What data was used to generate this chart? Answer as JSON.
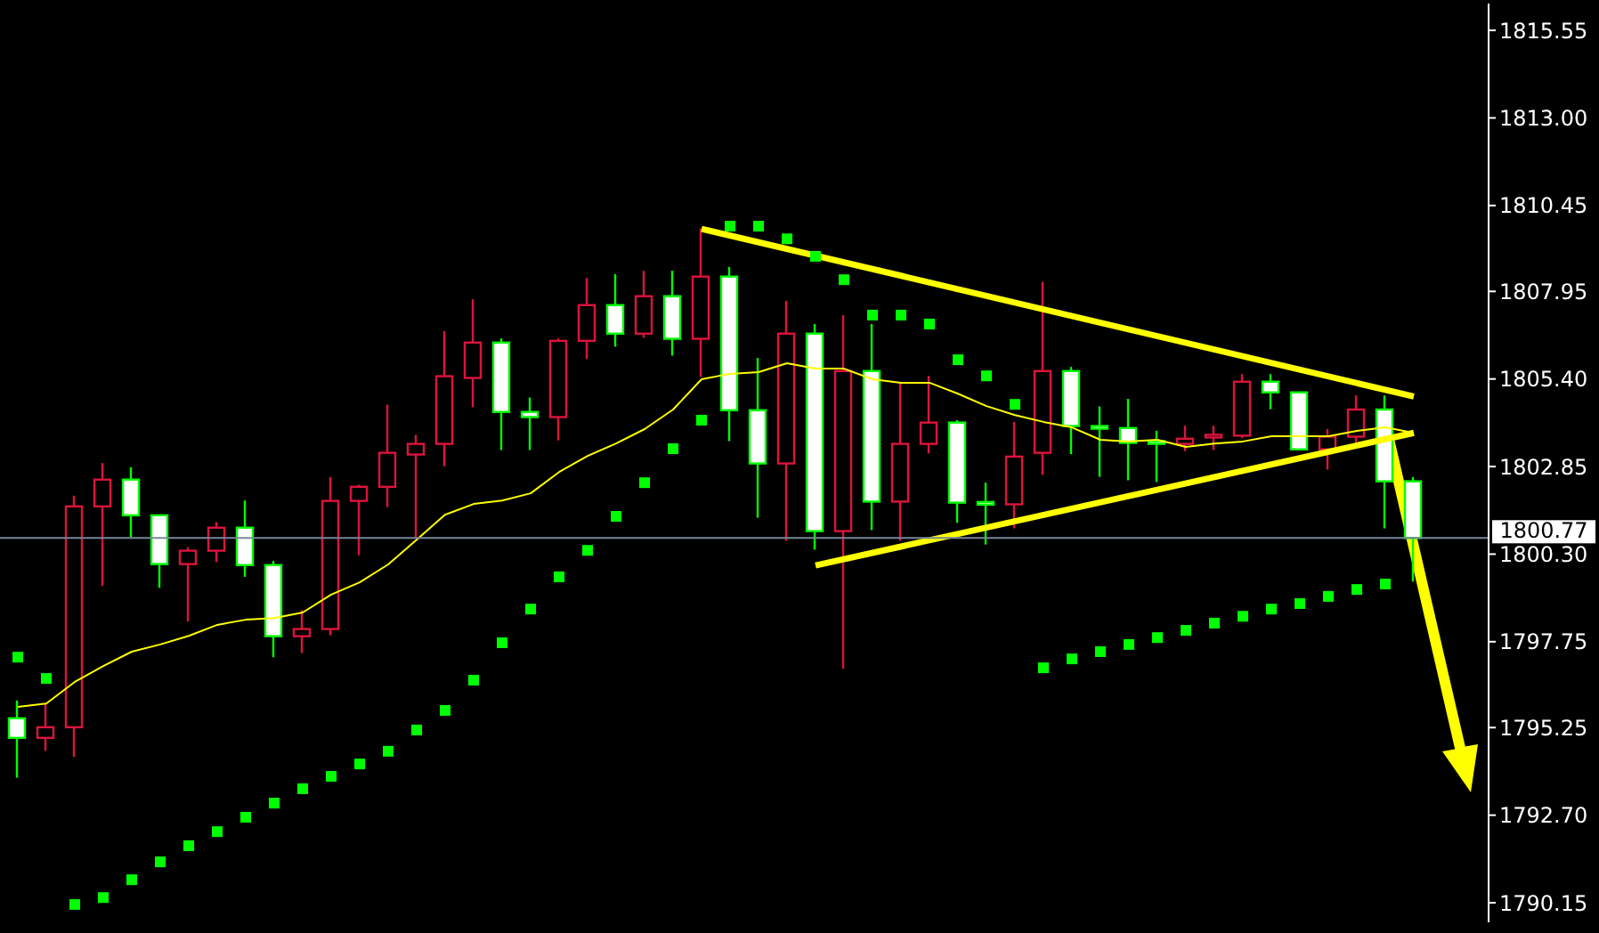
{
  "chart_data": {
    "type": "candlestick",
    "categories": [
      null,
      null,
      null,
      null,
      null,
      null,
      null,
      null,
      null,
      null,
      null,
      null,
      null,
      null,
      null,
      null,
      null,
      null,
      null,
      null,
      null,
      null,
      null,
      null,
      null,
      null,
      null,
      null,
      null,
      null,
      null,
      null,
      null,
      null,
      null,
      null,
      null,
      null,
      null,
      null,
      null,
      null,
      null,
      null,
      null,
      null,
      null,
      null,
      null,
      null
    ],
    "ylim": [
      1789.58,
      1816.33
    ],
    "yticks": [
      {
        "value": 1815.55,
        "label": "1815.55"
      },
      {
        "value": 1813,
        "label": "1813.00"
      },
      {
        "value": 1810.45,
        "label": "1810.45"
      },
      {
        "value": 1807.95,
        "label": "1807.95"
      },
      {
        "value": 1805.4,
        "label": "1805.40"
      },
      {
        "value": 1802.85,
        "label": "1802.85"
      },
      {
        "value": 1800.3,
        "label": "1800.30"
      },
      {
        "value": 1797.75,
        "label": "1797.75"
      },
      {
        "value": 1795.25,
        "label": "1795.25"
      },
      {
        "value": 1792.7,
        "label": "1792.70"
      },
      {
        "value": 1790.15,
        "label": "1790.15"
      }
    ],
    "tick_labels": "y",
    "grid": false,
    "legend": false,
    "marker": "none",
    "ohlc": [
      [
        1795.52,
        1796.04,
        1793.79,
        1794.95
      ],
      [
        1794.95,
        1795.95,
        1794.57,
        1795.26
      ],
      [
        1795.26,
        1802.0,
        1794.4,
        1801.69
      ],
      [
        1801.69,
        1802.95,
        1799.38,
        1802.47
      ],
      [
        1802.47,
        1802.83,
        1800.79,
        1801.43
      ],
      [
        1801.43,
        1801.43,
        1799.32,
        1800.01
      ],
      [
        1800.01,
        1800.5,
        1798.34,
        1800.4
      ],
      [
        1800.4,
        1801.23,
        1800.07,
        1801.07
      ],
      [
        1801.07,
        1801.86,
        1799.64,
        1799.98
      ],
      [
        1799.98,
        1800.1,
        1797.3,
        1797.91
      ],
      [
        1797.91,
        1798.67,
        1797.42,
        1798.12
      ],
      [
        1798.12,
        1802.54,
        1797.94,
        1801.85
      ],
      [
        1801.85,
        1802.32,
        1800.27,
        1802.26
      ],
      [
        1802.26,
        1804.65,
        1801.67,
        1803.25
      ],
      [
        1803.2,
        1803.77,
        1800.79,
        1803.51
      ],
      [
        1803.51,
        1806.79,
        1802.86,
        1805.48
      ],
      [
        1805.43,
        1807.72,
        1804.58,
        1806.46
      ],
      [
        1806.46,
        1806.58,
        1803.33,
        1804.44
      ],
      [
        1804.44,
        1804.86,
        1803.33,
        1804.29
      ],
      [
        1804.29,
        1806.58,
        1803.61,
        1806.51
      ],
      [
        1806.51,
        1808.34,
        1805.98,
        1807.55
      ],
      [
        1807.55,
        1808.45,
        1806.34,
        1806.72
      ],
      [
        1806.72,
        1808.55,
        1806.6,
        1807.81
      ],
      [
        1807.81,
        1808.55,
        1806.08,
        1806.57
      ],
      [
        1806.57,
        1809.78,
        1805.46,
        1808.38
      ],
      [
        1808.38,
        1808.66,
        1803.59,
        1804.49
      ],
      [
        1804.49,
        1806.01,
        1801.36,
        1802.94
      ],
      [
        1802.94,
        1807.67,
        1800.69,
        1806.72
      ],
      [
        1806.72,
        1807.0,
        1800.43,
        1800.97
      ],
      [
        1800.97,
        1807.26,
        1796.96,
        1805.63
      ],
      [
        1805.63,
        1807.0,
        1801.0,
        1801.83
      ],
      [
        1801.83,
        1805.29,
        1800.69,
        1803.51
      ],
      [
        1803.51,
        1805.49,
        1803.23,
        1804.13
      ],
      [
        1804.13,
        1804.2,
        1801.21,
        1801.8
      ],
      [
        1801.8,
        1802.38,
        1800.58,
        1801.76
      ],
      [
        1801.75,
        1804.15,
        1801.05,
        1803.14
      ],
      [
        1803.25,
        1808.23,
        1802.61,
        1805.63
      ],
      [
        1805.63,
        1805.75,
        1803.21,
        1804.03
      ],
      [
        1804.01,
        1804.6,
        1802.55,
        1803.97
      ],
      [
        1803.97,
        1804.82,
        1802.45,
        1803.54
      ],
      [
        1803.56,
        1803.89,
        1802.4,
        1803.54
      ],
      [
        1803.51,
        1804.04,
        1803.3,
        1803.66
      ],
      [
        1803.72,
        1804.04,
        1803.33,
        1803.75
      ],
      [
        1803.75,
        1805.54,
        1803.68,
        1805.32
      ],
      [
        1805.32,
        1805.54,
        1804.52,
        1805.01
      ],
      [
        1805.01,
        1805.01,
        1803.35,
        1803.35
      ],
      [
        1803.35,
        1803.94,
        1802.76,
        1803.72
      ],
      [
        1803.72,
        1804.92,
        1803.47,
        1804.51
      ],
      [
        1804.51,
        1804.92,
        1801.05,
        1802.42
      ],
      [
        1802.42,
        1802.54,
        1799.5,
        1800.77
      ]
    ],
    "colors": [
      "#00ff00",
      "#dc143c",
      "#dc143c",
      "#dc143c",
      "#00ff00",
      "#00ff00",
      "#dc143c",
      "#dc143c",
      "#00ff00",
      "#00ff00",
      "#dc143c",
      "#dc143c",
      "#dc143c",
      "#dc143c",
      "#dc143c",
      "#dc143c",
      "#dc143c",
      "#00ff00",
      "#00ff00",
      "#dc143c",
      "#dc143c",
      "#00ff00",
      "#dc143c",
      "#00ff00",
      "#dc143c",
      "#00ff00",
      "#00ff00",
      "#dc143c",
      "#00ff00",
      "#dc143c",
      "#00ff00",
      "#dc143c",
      "#dc143c",
      "#00ff00",
      "#00ff00",
      "#dc143c",
      "#dc143c",
      "#00ff00",
      "#00ff00",
      "#00ff00",
      "#00ff00",
      "#dc143c",
      "#dc143c",
      "#dc143c",
      "#00ff00",
      "#00ff00",
      "#dc143c",
      "#dc143c",
      "#00ff00",
      "#00ff00"
    ],
    "series": [
      {
        "type": "line",
        "color": "#ffff00",
        "values": [
          1795.85,
          1795.95,
          1796.58,
          1797.04,
          1797.46,
          1797.67,
          1797.92,
          1798.24,
          1798.39,
          1798.44,
          1798.6,
          1799.12,
          1799.48,
          1800.0,
          1800.72,
          1801.45,
          1801.76,
          1801.86,
          1802.07,
          1802.69,
          1803.16,
          1803.52,
          1803.94,
          1804.51,
          1805.39,
          1805.55,
          1805.6,
          1805.86,
          1805.7,
          1805.7,
          1805.39,
          1805.29,
          1805.29,
          1804.97,
          1804.61,
          1804.35,
          1804.15,
          1803.99,
          1803.63,
          1803.58,
          1803.63,
          1803.42,
          1803.52,
          1803.58,
          1803.73,
          1803.73,
          1803.73,
          1803.89,
          1803.99,
          1803.83
        ]
      },
      {
        "type": "scatter",
        "color": "#00ff00",
        "marker": "square",
        "values": [
          1797.3,
          1796.68,
          1790.1,
          1790.3,
          1790.82,
          1791.34,
          1791.81,
          1792.22,
          1792.64,
          1793.05,
          1793.47,
          1793.83,
          1794.19,
          1794.56,
          1795.18,
          1795.75,
          1796.63,
          1797.72,
          1798.7,
          1799.64,
          1800.41,
          1801.4,
          1802.38,
          1803.37,
          1804.2,
          1809.85,
          1809.85,
          1809.48,
          1808.97,
          1808.29,
          1807.26,
          1807.26,
          1807.0,
          1805.96,
          1805.49,
          1804.66,
          1796.99,
          1797.25,
          1797.46,
          1797.67,
          1797.87,
          1798.08,
          1798.29,
          1798.49,
          1798.7,
          1798.86,
          1799.07,
          1799.27,
          1799.43,
          null
        ]
      },
      {
        "type": "line",
        "color": "#ffff00",
        "values": [
          null,
          null,
          null,
          null,
          null,
          null,
          null,
          null,
          null,
          null,
          null,
          null,
          null,
          null,
          null,
          null,
          null,
          null,
          null,
          null,
          null,
          null,
          null,
          null,
          1809.77,
          null,
          null,
          null,
          null,
          null,
          null,
          null,
          null,
          null,
          null,
          null,
          null,
          null,
          null,
          null,
          null,
          null,
          null,
          null,
          null,
          null,
          null,
          null,
          null,
          1804.89
        ]
      },
      {
        "type": "line",
        "color": "#ffff00",
        "values": [
          null,
          null,
          null,
          null,
          null,
          null,
          null,
          null,
          null,
          null,
          null,
          null,
          null,
          null,
          null,
          null,
          null,
          null,
          null,
          null,
          null,
          null,
          null,
          null,
          null,
          null,
          null,
          null,
          1799.97,
          null,
          null,
          null,
          null,
          null,
          null,
          null,
          null,
          null,
          null,
          null,
          null,
          null,
          null,
          null,
          null,
          null,
          null,
          null,
          null,
          1803.83
        ]
      }
    ],
    "ref_lines": [
      {
        "axis": "y",
        "value": 1800.77,
        "label": "1800.77",
        "color": "#778899"
      }
    ]
  }
}
